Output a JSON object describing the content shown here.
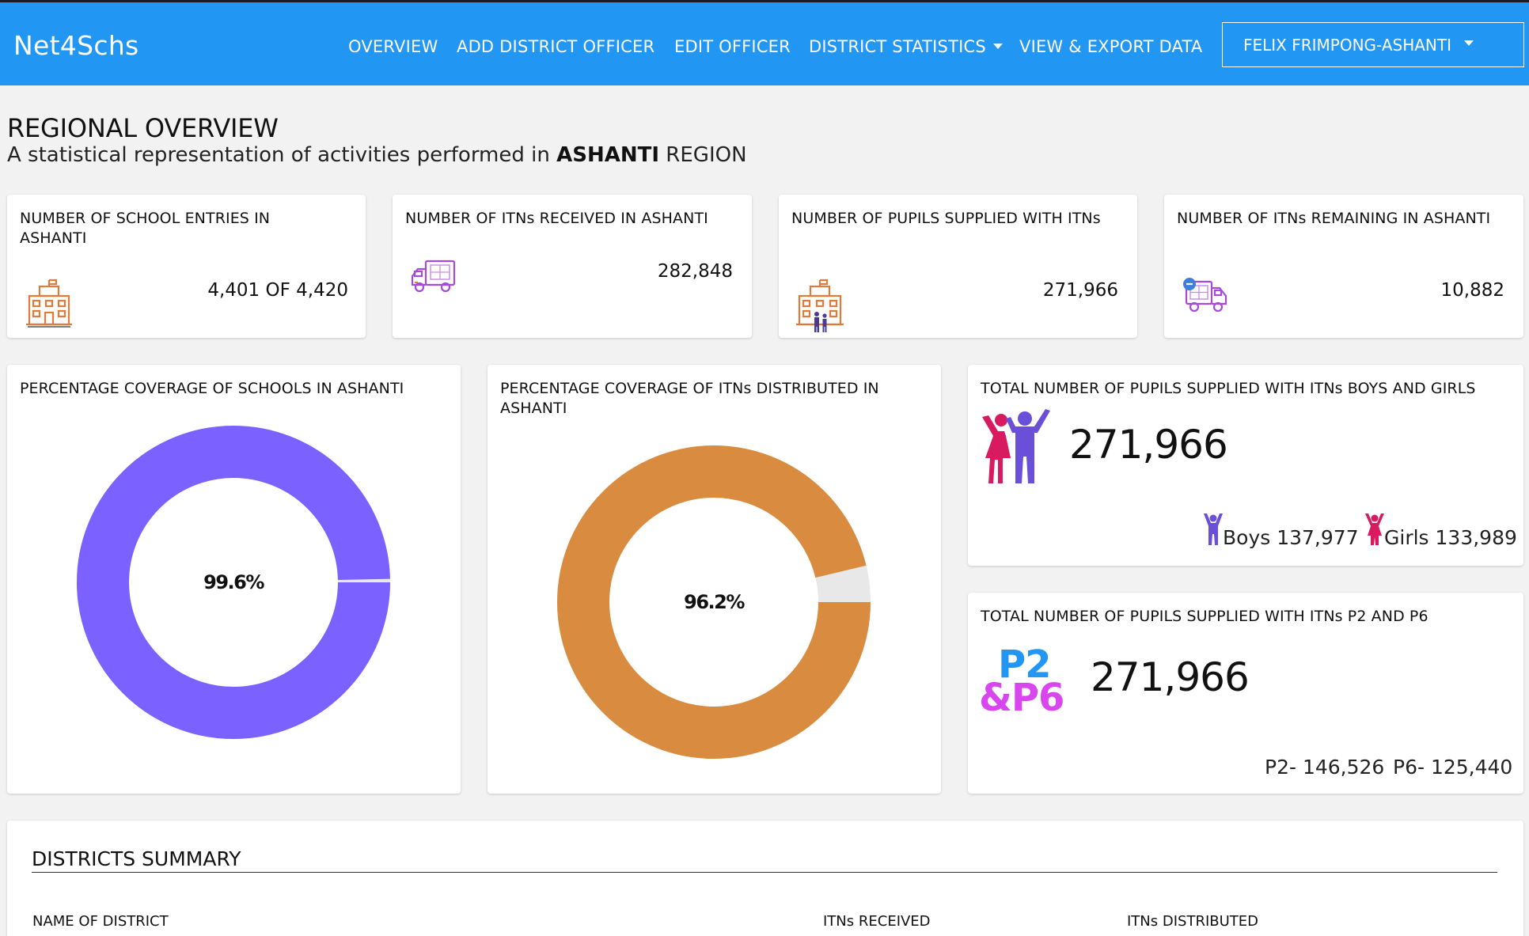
{
  "nav": {
    "brand": "Net4Schs",
    "links": [
      "OVERVIEW",
      "ADD DISTRICT OFFICER",
      "EDIT OFFICER",
      "DISTRICT STATISTICS",
      "VIEW & EXPORT DATA"
    ],
    "user": "FELIX FRIMPONG-ASHANTI"
  },
  "header": {
    "title": "REGIONAL OVERVIEW",
    "subtitle_prefix": "A statistical representation of activities performed in",
    "region": "ASHANTI",
    "subtitle_suffix": "REGION"
  },
  "stats": [
    {
      "label": "NUMBER OF SCHOOL ENTRIES IN ASHANTI",
      "value": "4,401 OF 4,420",
      "icon": "school-building-icon"
    },
    {
      "label": "NUMBER OF ITNs RECEIVED IN ASHANTI",
      "value": "282,848",
      "icon": "delivery-truck-icon"
    },
    {
      "label": "NUMBER OF PUPILS SUPPLIED WITH ITNs",
      "value": "271,966",
      "icon": "school-pupils-icon"
    },
    {
      "label": "NUMBER OF ITNs REMAINING IN ASHANTI",
      "value": "10,882",
      "icon": "truck-remaining-icon"
    }
  ],
  "coverage": {
    "schools": {
      "label": "PERCENTAGE COVERAGE OF SCHOOLS IN ASHANTI",
      "percent": 99.6,
      "percent_label": "99.6%",
      "color": "#7b61ff",
      "rest_color": "#e8e8e8"
    },
    "itns": {
      "label": "PERCENTAGE COVERAGE OF ITNs DISTRIBUTED IN ASHANTI",
      "percent": 96.2,
      "percent_label": "96.2%",
      "color": "#d98c3f",
      "rest_color": "#e8e8e8"
    }
  },
  "gender": {
    "label": "TOTAL NUMBER OF PUPILS SUPPLIED WITH ITNs BOYS AND GIRLS",
    "total": "271,966",
    "boys": "Boys 137,977",
    "girls": "Girls 133,989"
  },
  "grades": {
    "label": "TOTAL NUMBER OF PUPILS SUPPLIED WITH ITNs P2 AND P6",
    "logo_line1": "P2",
    "logo_line2": "&P6",
    "total": "271,966",
    "p2": "P2- 146,526",
    "p6": "P6- 125,440"
  },
  "summary": {
    "title": "DISTRICTS SUMMARY",
    "columns": [
      "NAME OF DISTRICT",
      "ITNs RECEIVED",
      "ITNs DISTRIBUTED"
    ]
  },
  "colors": {
    "nav": "#2196f3",
    "boy": "#6a4fd8",
    "girl": "#d81b60",
    "p2": "#2196f3",
    "p6": "#d946ef"
  }
}
